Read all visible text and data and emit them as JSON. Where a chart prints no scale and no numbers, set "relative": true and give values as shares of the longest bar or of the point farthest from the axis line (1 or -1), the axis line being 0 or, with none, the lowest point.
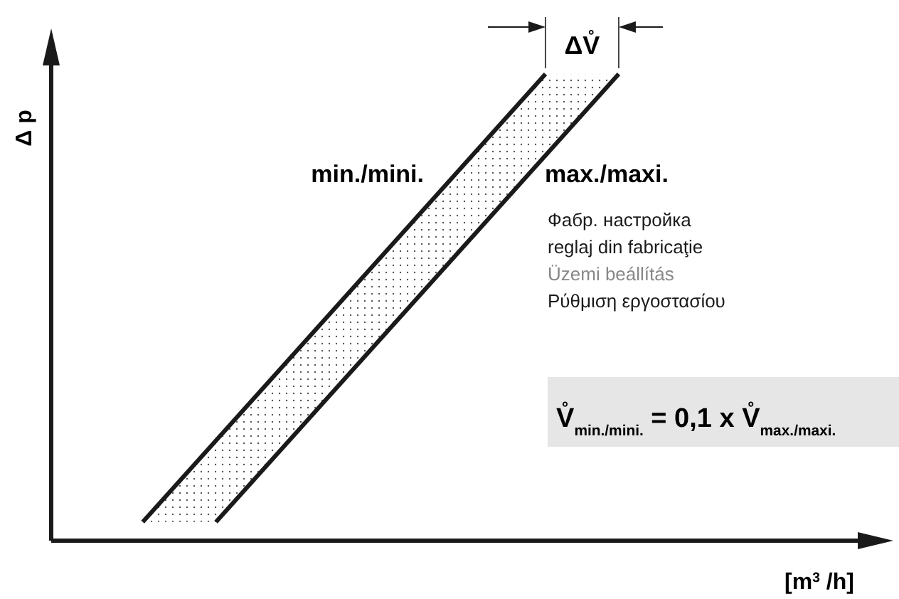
{
  "chart_data": {
    "type": "line",
    "relative": true,
    "ylabel": "Δ p",
    "xlabel": "[m$^{3}$ /h]",
    "categories": [
      null,
      null,
      null,
      null,
      null,
      null,
      null,
      null,
      null,
      null,
      null,
      null,
      null,
      null,
      null,
      null,
      null,
      null,
      null,
      null,
      null,
      null,
      null
    ],
    "series": [
      {
        "name": "min./mini.",
        "color": "#1a1a1a",
        "values": [
          null,
          null,
          0.04,
          null,
          null,
          null,
          null,
          null,
          null,
          null,
          null,
          null,
          null,
          1,
          null,
          null,
          null,
          null,
          null,
          null,
          null,
          null,
          null
        ]
      },
      {
        "name": "max./maxi.",
        "color": "#1a1a1a",
        "values": [
          null,
          null,
          null,
          null,
          0.04,
          null,
          null,
          null,
          null,
          null,
          null,
          null,
          null,
          null,
          null,
          1,
          null,
          null,
          null,
          null,
          null,
          null,
          null
        ]
      }
    ],
    "annotations": [
      "ΔV̊",
      "Фабр. настройка",
      "reglaj din fabricaţie",
      "Üzemi beállítás",
      "Ρύθμιση εργοστασίου",
      "V̊$_{min./mini.}$ = 0,1 x V̊$_{max./maxi.}$"
    ],
    "marker": "none",
    "line_style": "solid"
  }
}
